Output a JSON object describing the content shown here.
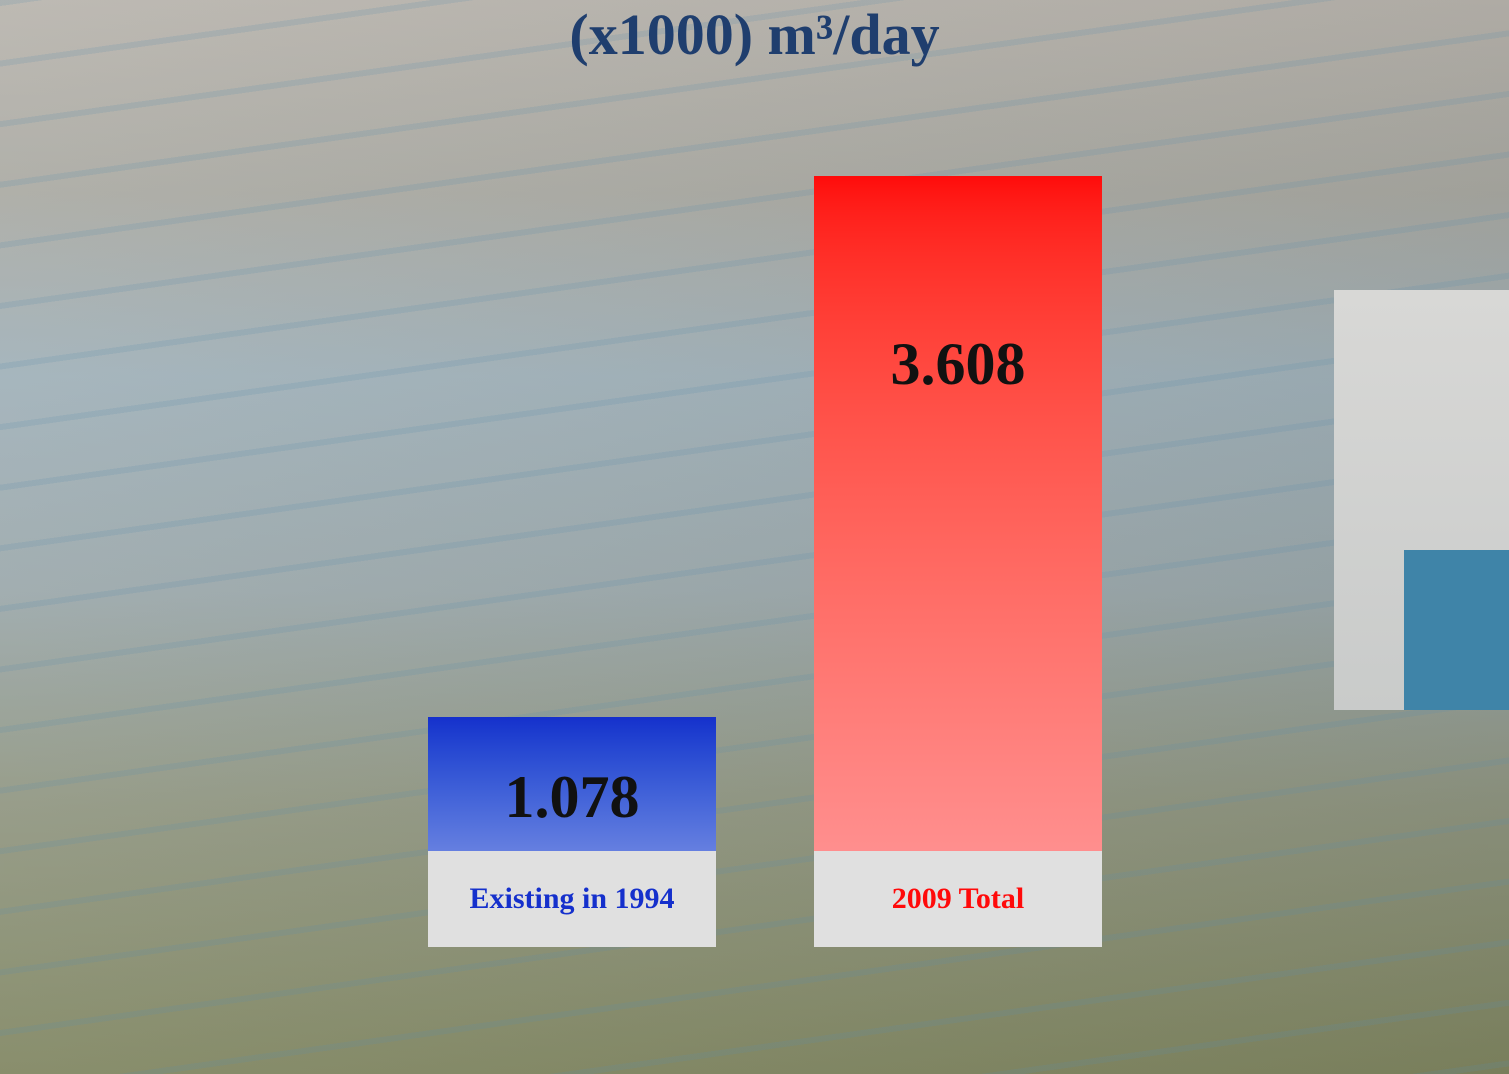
{
  "chart_data": {
    "type": "bar",
    "title": "(x1000) m³/day",
    "categories": [
      "Existing in 1994",
      "2009 Total"
    ],
    "values": [
      1.078,
      3.608
    ],
    "colors": [
      "#1530cc",
      "#ff0a0a"
    ]
  }
}
